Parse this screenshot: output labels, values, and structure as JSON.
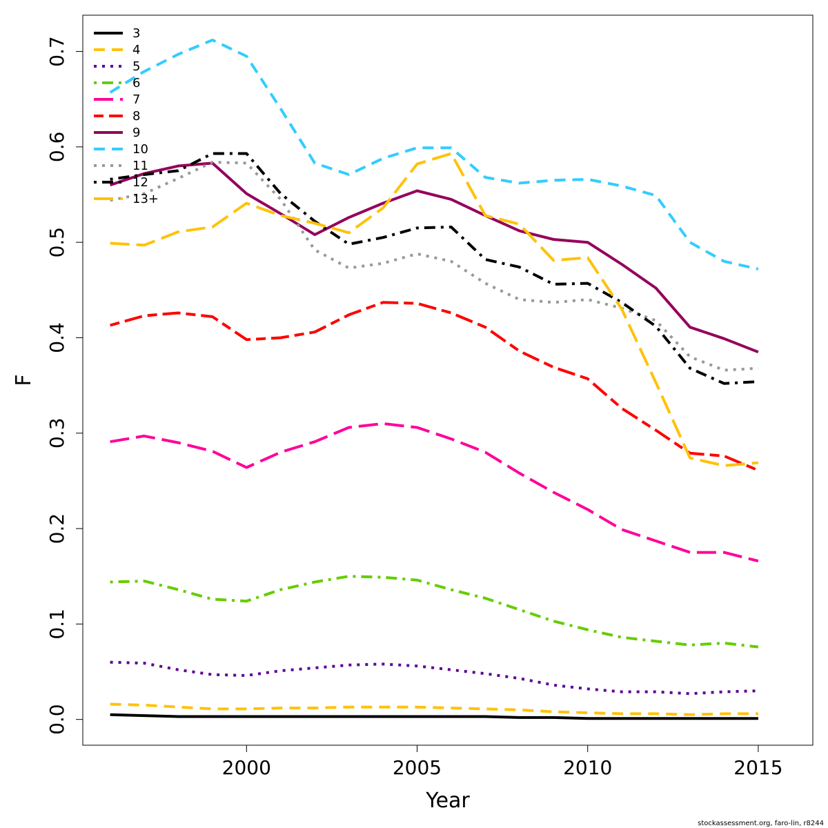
{
  "chart_data": {
    "type": "line",
    "xlabel": "Year",
    "ylabel": "F",
    "xlim": [
      1995.2,
      2016.6
    ],
    "ylim": [
      -0.027,
      0.738
    ],
    "xticks": [
      "2000",
      "2005",
      "2010",
      "2015"
    ],
    "yticks": [
      "0.0",
      "0.1",
      "0.2",
      "0.3",
      "0.4",
      "0.5",
      "0.6",
      "0.7"
    ],
    "legend_position": "top-left",
    "grid": false,
    "x": [
      1996,
      1997,
      1998,
      1999,
      2000,
      2001,
      2002,
      2003,
      2004,
      2005,
      2006,
      2007,
      2008,
      2009,
      2010,
      2011,
      2012,
      2013,
      2014,
      2015
    ],
    "series": [
      {
        "name": "3",
        "color": "#000000",
        "dash": "solid",
        "values": [
          0.005,
          0.004,
          0.003,
          0.003,
          0.003,
          0.003,
          0.003,
          0.003,
          0.003,
          0.003,
          0.003,
          0.003,
          0.002,
          0.002,
          0.001,
          0.001,
          0.001,
          0.001,
          0.001,
          0.001
        ]
      },
      {
        "name": "4",
        "color": "#FFC20A",
        "dash": "dashed",
        "values": [
          0.016,
          0.015,
          0.013,
          0.011,
          0.011,
          0.012,
          0.012,
          0.013,
          0.013,
          0.013,
          0.012,
          0.011,
          0.01,
          0.008,
          0.007,
          0.006,
          0.006,
          0.005,
          0.006,
          0.006
        ]
      },
      {
        "name": "5",
        "color": "#5C0094",
        "dash": "dotted",
        "values": [
          0.06,
          0.059,
          0.052,
          0.047,
          0.046,
          0.051,
          0.054,
          0.057,
          0.058,
          0.056,
          0.052,
          0.048,
          0.043,
          0.036,
          0.032,
          0.029,
          0.029,
          0.027,
          0.029,
          0.03
        ]
      },
      {
        "name": "6",
        "color": "#66CC00",
        "dash": "dotdash",
        "values": [
          0.144,
          0.145,
          0.136,
          0.126,
          0.124,
          0.136,
          0.144,
          0.15,
          0.149,
          0.146,
          0.136,
          0.127,
          0.115,
          0.103,
          0.094,
          0.086,
          0.082,
          0.078,
          0.08,
          0.076
        ]
      },
      {
        "name": "7",
        "color": "#FF0099",
        "dash": "longdash",
        "values": [
          0.291,
          0.297,
          0.29,
          0.281,
          0.264,
          0.28,
          0.291,
          0.306,
          0.31,
          0.306,
          0.294,
          0.28,
          0.258,
          0.238,
          0.22,
          0.199,
          0.187,
          0.175,
          0.175,
          0.166
        ]
      },
      {
        "name": "8",
        "color": "#FF0000",
        "dash": "twodash",
        "values": [
          0.413,
          0.423,
          0.426,
          0.422,
          0.398,
          0.4,
          0.406,
          0.424,
          0.437,
          0.436,
          0.426,
          0.411,
          0.386,
          0.369,
          0.357,
          0.326,
          0.303,
          0.279,
          0.276,
          0.261
        ]
      },
      {
        "name": "9",
        "color": "#94005C",
        "dash": "solid",
        "values": [
          0.56,
          0.572,
          0.58,
          0.583,
          0.551,
          0.53,
          0.508,
          0.526,
          0.541,
          0.554,
          0.545,
          0.528,
          0.512,
          0.503,
          0.5,
          0.477,
          0.452,
          0.411,
          0.399,
          0.385
        ]
      },
      {
        "name": "10",
        "color": "#33CCFF",
        "dash": "dashed",
        "values": [
          0.657,
          0.679,
          0.697,
          0.712,
          0.695,
          0.64,
          0.583,
          0.571,
          0.588,
          0.599,
          0.599,
          0.568,
          0.562,
          0.565,
          0.566,
          0.559,
          0.549,
          0.5,
          0.48,
          0.472
        ]
      },
      {
        "name": "11",
        "color": "#999999",
        "dash": "dotted",
        "values": [
          0.544,
          0.551,
          0.567,
          0.584,
          0.583,
          0.545,
          0.492,
          0.473,
          0.478,
          0.488,
          0.48,
          0.457,
          0.44,
          0.437,
          0.44,
          0.431,
          0.418,
          0.38,
          0.366,
          0.368
        ]
      },
      {
        "name": "12",
        "color": "#000000",
        "dash": "dotdash",
        "values": [
          0.566,
          0.571,
          0.575,
          0.593,
          0.593,
          0.551,
          0.522,
          0.498,
          0.505,
          0.515,
          0.516,
          0.482,
          0.474,
          0.456,
          0.457,
          0.437,
          0.412,
          0.368,
          0.352,
          0.354
        ]
      },
      {
        "name": "13+",
        "color": "#FFC20A",
        "dash": "longdash",
        "values": [
          0.499,
          0.497,
          0.511,
          0.516,
          0.541,
          0.528,
          0.52,
          0.51,
          0.536,
          0.582,
          0.593,
          0.528,
          0.519,
          0.481,
          0.484,
          0.43,
          0.353,
          0.274,
          0.266,
          0.269
        ]
      }
    ]
  },
  "credit": "stockassessment.org, faro-lin, r8244"
}
